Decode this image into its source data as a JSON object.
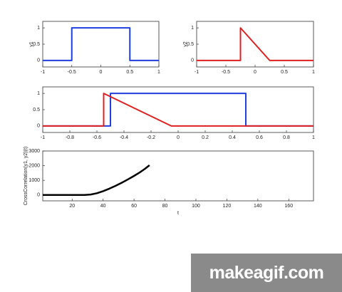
{
  "chart_data": [
    {
      "type": "line",
      "ylabel": "y1",
      "xlim": [
        -1,
        1
      ],
      "ylim": [
        -0.2,
        1.2
      ],
      "xticks": [
        -1,
        -0.5,
        0,
        0.5,
        1
      ],
      "yticks": [
        0,
        0.5,
        1
      ],
      "series": [
        {
          "color": "#1f3fe0",
          "x": [
            -1,
            -0.5,
            -0.5,
            0.5,
            0.5,
            1
          ],
          "values": [
            0,
            0,
            1,
            1,
            0,
            0
          ]
        }
      ]
    },
    {
      "type": "line",
      "ylabel": "y2",
      "xlim": [
        -1,
        1
      ],
      "ylim": [
        -0.2,
        1.2
      ],
      "xticks": [
        -1,
        -0.5,
        0,
        0.5,
        1
      ],
      "yticks": [
        0,
        0.5,
        1
      ],
      "series": [
        {
          "color": "#e02020",
          "x": [
            -1,
            -0.25,
            -0.25,
            0.25,
            1
          ],
          "values": [
            0,
            0,
            1,
            0,
            0
          ]
        }
      ]
    },
    {
      "type": "line",
      "xlim": [
        -1,
        1
      ],
      "ylim": [
        -0.2,
        1.2
      ],
      "xticks": [
        -1,
        -0.8,
        -0.6,
        -0.4,
        -0.2,
        0,
        0.2,
        0.4,
        0.6,
        0.8,
        1
      ],
      "yticks": [
        0,
        0.5,
        1
      ],
      "series": [
        {
          "color": "#1f3fe0",
          "x": [
            -1,
            -0.5,
            -0.5,
            0.5,
            0.5,
            1
          ],
          "values": [
            0,
            0,
            1,
            1,
            0,
            0
          ]
        },
        {
          "color": "#e02020",
          "x": [
            -1,
            -0.55,
            -0.55,
            -0.05,
            1
          ],
          "values": [
            0,
            0,
            1,
            0,
            0
          ]
        }
      ]
    },
    {
      "type": "line",
      "ylabel": "CrossCorrelation(y1, y2)(t)",
      "xlabel": "t",
      "xlim": [
        1,
        176
      ],
      "ylim": [
        -400,
        3000
      ],
      "xticks": [
        20,
        40,
        60,
        80,
        100,
        120,
        140,
        160
      ],
      "yticks": [
        0,
        1000,
        2000,
        3000
      ],
      "series": [
        {
          "color": "#000000",
          "x": [
            1,
            10,
            20,
            28,
            32,
            36,
            40,
            44,
            48,
            52,
            56,
            60,
            64,
            67,
            70
          ],
          "values": [
            0,
            0,
            0,
            0,
            30,
            120,
            260,
            430,
            620,
            830,
            1060,
            1300,
            1560,
            1780,
            2030
          ]
        }
      ]
    }
  ],
  "watermark": "makeagif.com"
}
